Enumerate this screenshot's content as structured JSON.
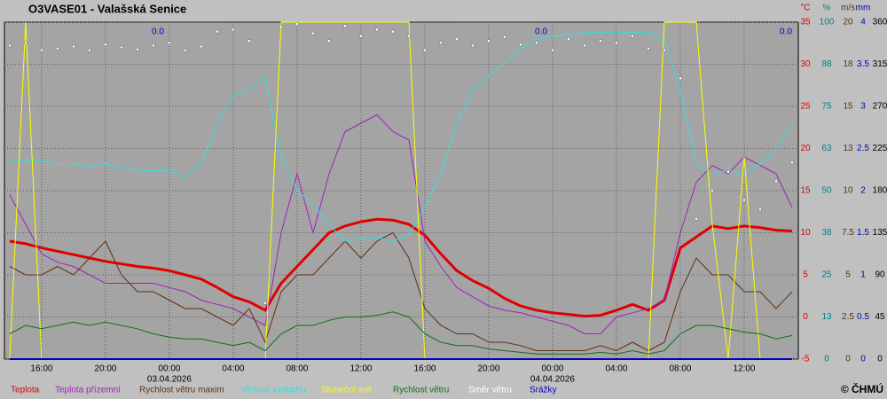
{
  "chart_data": {
    "type": "line",
    "title": "O3VASE01 - Valašská Senice",
    "credit": "© ČHMÚ",
    "precip_sums": [
      "0.0",
      "0.0",
      "0.0"
    ],
    "y_units": [
      "°C",
      "%",
      "m/s",
      "mm"
    ],
    "x": [
      -10,
      -9,
      -8,
      -7,
      -6,
      -5,
      -4,
      -3,
      -2,
      -1,
      0,
      1,
      2,
      3,
      4,
      5,
      6,
      7,
      8,
      9,
      10,
      11,
      12,
      13,
      14,
      15,
      16,
      17,
      18,
      19,
      20,
      21,
      22,
      23,
      24,
      25,
      26,
      27,
      28,
      29,
      30,
      31,
      32,
      33,
      34,
      35,
      36,
      37,
      38,
      39
    ],
    "xlim": [
      -10.33,
      39.39
    ],
    "xticks": [
      {
        "value": -8,
        "label": "16:00"
      },
      {
        "value": -4,
        "label": "20:00"
      },
      {
        "value": 0,
        "label": "00:00"
      },
      {
        "value": 4,
        "label": "04:00"
      },
      {
        "value": 8,
        "label": "08:00"
      },
      {
        "value": 12,
        "label": "12:00"
      },
      {
        "value": 16,
        "label": "16:00"
      },
      {
        "value": 20,
        "label": "20:00"
      },
      {
        "value": 24,
        "label": "00:00"
      },
      {
        "value": 28,
        "label": "04:00"
      },
      {
        "value": 32,
        "label": "08:00"
      },
      {
        "value": 36,
        "label": "12:00"
      }
    ],
    "x_dates": [
      {
        "value": 0,
        "label": "03.04.2026"
      },
      {
        "value": 24,
        "label": "04.04.2026"
      }
    ],
    "ylim": [
      -5,
      35
    ],
    "yticks": [
      35,
      30,
      25,
      20,
      15,
      10,
      5,
      0,
      -5
    ],
    "y2lim": [
      0,
      100
    ],
    "y2ticks": [
      100,
      {
        "value": 87.5,
        "label": "88"
      },
      75,
      {
        "value": 62.5,
        "label": "63"
      },
      50,
      {
        "value": 37.5,
        "label": "38"
      },
      25,
      {
        "value": 12.5,
        "label": "13"
      },
      0
    ],
    "y3lim": [
      0,
      20
    ],
    "y3ticks": [
      20,
      {
        "value": 17.5,
        "label": "18"
      },
      15,
      {
        "value": 12.5,
        "label": "13"
      },
      10,
      7.5,
      5,
      2.5,
      0
    ],
    "y4lim": [
      0,
      4
    ],
    "y4ticks": [
      4,
      3.5,
      3,
      2.5,
      2,
      1.5,
      1,
      0.5,
      0
    ],
    "y5lim": [
      0,
      360
    ],
    "y5ticks": [
      360,
      315,
      270,
      225,
      180,
      135,
      90,
      45,
      0
    ],
    "grid": true,
    "series": [
      {
        "name": "Teplota",
        "color": "#e00000",
        "axis": "y",
        "width": 3,
        "values": [
          9.0,
          8.7,
          8.2,
          7.8,
          7.4,
          7.0,
          6.6,
          6.3,
          6.0,
          5.8,
          5.5,
          5.0,
          4.5,
          3.5,
          2.4,
          1.8,
          0.8,
          4.0,
          6.0,
          8.0,
          10.0,
          10.8,
          11.3,
          11.6,
          11.5,
          11.0,
          9.7,
          7.5,
          5.5,
          4.3,
          3.4,
          2.2,
          1.3,
          0.8,
          0.5,
          0.3,
          0.1,
          0.2,
          0.8,
          1.5,
          0.8,
          2.0,
          8.2,
          9.5,
          10.8,
          10.5,
          10.8,
          10.6,
          10.3,
          10.2
        ]
      },
      {
        "name": "Teplota přízemní",
        "color": "#a020c0",
        "axis": "y",
        "width": 1,
        "values": [
          14.5,
          11,
          7.5,
          6.5,
          6,
          5,
          4,
          4,
          4,
          4,
          3.5,
          3,
          2,
          1.5,
          1,
          0,
          -1,
          10,
          17,
          10,
          17,
          22,
          23,
          24,
          22,
          21,
          9,
          6,
          3.5,
          2.4,
          1.3,
          0.8,
          0.5,
          0,
          -0.5,
          -1,
          -2,
          -2,
          0,
          0.5,
          1,
          2,
          10,
          16,
          18,
          17,
          19,
          18,
          17,
          13
        ]
      },
      {
        "name": "Rychlost větru maxim",
        "color": "#603010",
        "axis": "y3",
        "width": 1,
        "values": [
          5.5,
          5,
          5,
          5.5,
          5,
          6,
          7,
          5,
          4,
          4,
          3.5,
          3,
          3,
          2.5,
          2,
          3,
          1,
          4,
          5,
          5,
          6,
          7,
          6,
          7,
          7.5,
          6,
          3,
          2,
          1.5,
          1.5,
          1,
          1,
          0.8,
          0.5,
          0.5,
          0.5,
          0.5,
          0.8,
          0.5,
          1,
          0.5,
          1,
          4,
          6,
          5,
          5,
          4,
          4,
          3,
          4
        ]
      },
      {
        "name": "Vlhkost vzduchu",
        "color": "#30e0e0",
        "axis": "y2",
        "width": 1,
        "values": [
          59,
          59,
          59,
          58,
          58,
          57,
          58,
          57,
          56,
          56,
          56,
          54,
          58,
          70,
          78,
          80,
          84,
          60,
          50,
          46,
          40,
          35,
          36,
          36,
          35,
          37,
          45,
          55,
          70,
          80,
          84,
          88,
          92,
          95,
          96,
          96,
          97,
          97,
          97,
          97,
          97,
          95,
          80,
          58,
          55,
          56,
          55,
          58,
          62,
          70
        ]
      },
      {
        "name": "Sluneční svit",
        "color": "#ffff00",
        "axis": "y2",
        "width": 1,
        "values": [
          0,
          100,
          0,
          0,
          0,
          0,
          0,
          0,
          0,
          0,
          0,
          0,
          0,
          0,
          0,
          0,
          0,
          100,
          100,
          100,
          100,
          100,
          100,
          100,
          100,
          100,
          0,
          0,
          0,
          0,
          0,
          0,
          0,
          0,
          0,
          0,
          0,
          0,
          0,
          0,
          0,
          100,
          100,
          100,
          40,
          0,
          60,
          0,
          0,
          0
        ]
      },
      {
        "name": "Rychlost větru",
        "color": "#107010",
        "axis": "y3",
        "width": 1,
        "values": [
          1.5,
          2,
          1.8,
          2,
          2.2,
          2,
          2.2,
          2,
          1.8,
          1.5,
          1.3,
          1.2,
          1.2,
          1,
          0.8,
          1,
          0.5,
          1.5,
          2,
          2,
          2.3,
          2.5,
          2.5,
          2.6,
          2.8,
          2.5,
          1.5,
          1,
          0.8,
          0.8,
          0.6,
          0.5,
          0.4,
          0.3,
          0.3,
          0.3,
          0.3,
          0.4,
          0.3,
          0.5,
          0.3,
          0.5,
          1.5,
          2,
          2,
          1.8,
          1.6,
          1.5,
          1.2,
          1.4
        ]
      },
      {
        "name": "Směr větru",
        "color": "#ffffff",
        "axis": "y5",
        "marker": "dot",
        "values": [
          335,
          338,
          330,
          332,
          334,
          330,
          336,
          333,
          331,
          335,
          338,
          330,
          334,
          350,
          352,
          340,
          60,
          355,
          358,
          348,
          340,
          356,
          345,
          352,
          350,
          345,
          330,
          338,
          342,
          335,
          340,
          344,
          336,
          338,
          330,
          342,
          335,
          340,
          338,
          345,
          332,
          330,
          300,
          150,
          180,
          200,
          170,
          160,
          190,
          210
        ]
      },
      {
        "name": "Srážky",
        "color": "#0000c0",
        "axis": "y4",
        "width": 2,
        "values": [
          0,
          0,
          0,
          0,
          0,
          0,
          0,
          0,
          0,
          0,
          0,
          0,
          0,
          0,
          0,
          0,
          0,
          0,
          0,
          0,
          0,
          0,
          0,
          0,
          0,
          0,
          0,
          0,
          0,
          0,
          0,
          0,
          0,
          0,
          0,
          0,
          0,
          0,
          0,
          0,
          0,
          0,
          0,
          0,
          0,
          0,
          0,
          0,
          0,
          0
        ]
      }
    ]
  }
}
